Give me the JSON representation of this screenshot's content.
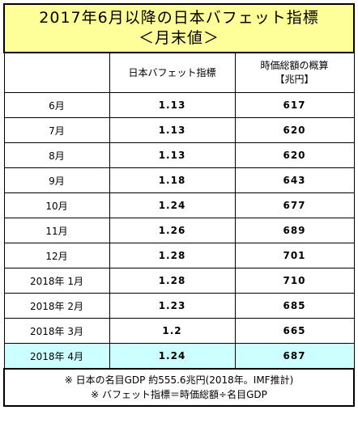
{
  "title": {
    "line1": "2017年6月以降の日本バフェット指標",
    "line2": "＜月末値＞"
  },
  "header": {
    "col1": "",
    "col2": "日本バフェット指標",
    "col3_line1": "時価総額の概算",
    "col3_line2": "【兆円】"
  },
  "rows": [
    {
      "month": "6月",
      "indicator": "1.13",
      "cap": "617"
    },
    {
      "month": "7月",
      "indicator": "1.13",
      "cap": "620"
    },
    {
      "month": "8月",
      "indicator": "1.13",
      "cap": "620"
    },
    {
      "month": "9月",
      "indicator": "1.18",
      "cap": "643"
    },
    {
      "month": "10月",
      "indicator": "1.24",
      "cap": "677"
    },
    {
      "month": "11月",
      "indicator": "1.26",
      "cap": "689"
    },
    {
      "month": "12月",
      "indicator": "1.28",
      "cap": "701"
    },
    {
      "month": "2018年 1月",
      "indicator": "1.28",
      "cap": "710"
    },
    {
      "month": "2018年 2月",
      "indicator": "1.23",
      "cap": "685"
    },
    {
      "month": "2018年 3月",
      "indicator": "1.2",
      "cap": "665"
    },
    {
      "month": "2018年 4月",
      "indicator": "1.24",
      "cap": "687"
    }
  ],
  "notes": {
    "line1": "※ 日本の名目GDP 約555.6兆円(2018年。IMF推計)",
    "line2": "※ バフェット指標＝時価総額÷名目GDP"
  },
  "colors": {
    "title_bg": "#ffff99",
    "highlight_row": "#ccffff",
    "border": "#000000"
  }
}
